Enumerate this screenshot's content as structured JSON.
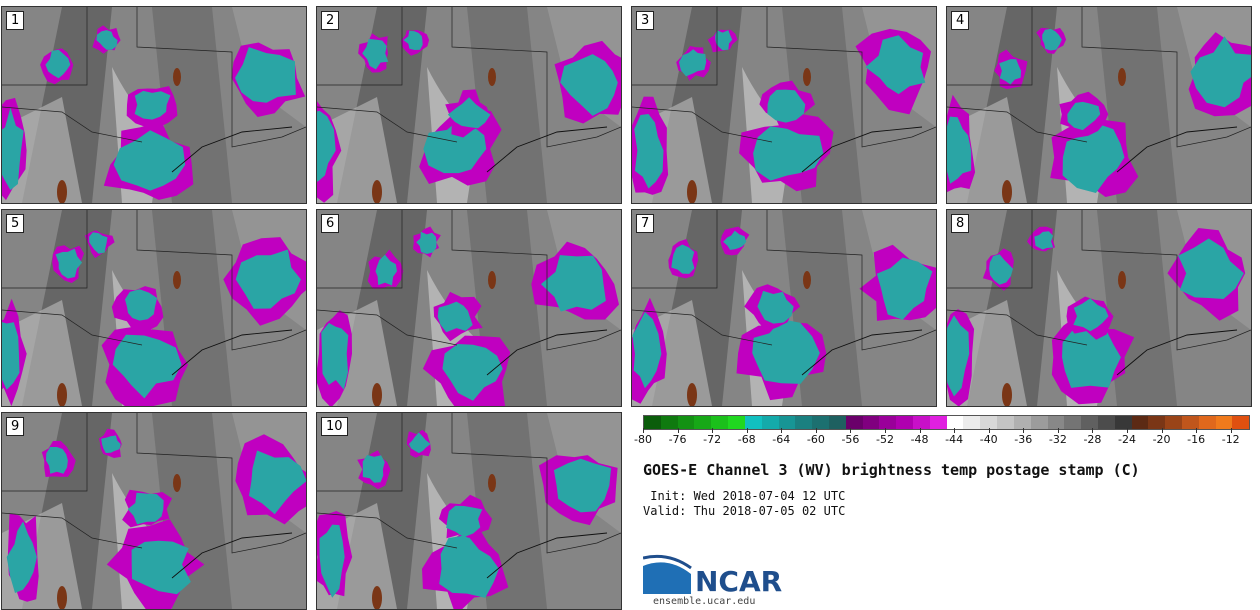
{
  "stamps": [
    {
      "label": "1"
    },
    {
      "label": "2"
    },
    {
      "label": "3"
    },
    {
      "label": "4"
    },
    {
      "label": "5"
    },
    {
      "label": "6"
    },
    {
      "label": "7"
    },
    {
      "label": "8"
    },
    {
      "label": "9"
    },
    {
      "label": "10"
    }
  ],
  "colorbar": {
    "min": -80,
    "max": -10,
    "step": 2,
    "tick_labels": [
      "-80",
      "-76",
      "-72",
      "-68",
      "-64",
      "-60",
      "-56",
      "-52",
      "-48",
      "-44",
      "-40",
      "-36",
      "-32",
      "-28",
      "-24",
      "-20",
      "-16",
      "-12"
    ],
    "colors": [
      "#0b5d0b",
      "#0f7a0f",
      "#139213",
      "#17a817",
      "#1bc01b",
      "#20d820",
      "#11c0c0",
      "#14aaaa",
      "#179595",
      "#1a8080",
      "#1c7070",
      "#1e6060",
      "#6a006a",
      "#80007f",
      "#9a009a",
      "#b000b0",
      "#c810c8",
      "#e020e0",
      "#ffffff",
      "#ececec",
      "#d8d8d8",
      "#c4c4c4",
      "#b0b0b0",
      "#9c9c9c",
      "#888888",
      "#747474",
      "#606060",
      "#4c4c4c",
      "#383838",
      "#5c2a14",
      "#7a3616",
      "#9a4418",
      "#c0561c",
      "#e0681c",
      "#f07a1c",
      "#e05010"
    ]
  },
  "title": "GOES-E Channel 3 (WV) brightness temp postage stamp (C)",
  "init_label": " Init: Wed 2018-07-04 12 UTC",
  "valid_label": "Valid: Thu 2018-07-05 02 UTC",
  "logo": {
    "text": "NCAR",
    "url": "ensemble.ucar.edu"
  }
}
